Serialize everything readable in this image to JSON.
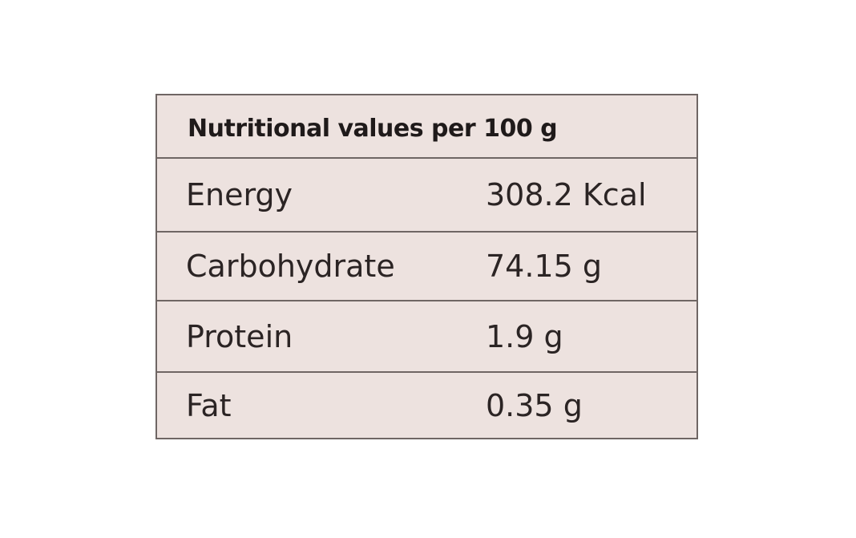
{
  "table": {
    "header": "Nutritional values per 100 g",
    "rows": [
      {
        "nutrient": "Energy",
        "amount": "308.2 Kcal"
      },
      {
        "nutrient": "Carbohydrate",
        "amount": "74.15 g"
      },
      {
        "nutrient": "Protein",
        "amount": "1.9 g"
      },
      {
        "nutrient": "Fat",
        "amount": "0.35 g"
      }
    ]
  },
  "colors": {
    "background": "#ede2df",
    "border": "#6f6664",
    "text": "#2b2424"
  }
}
